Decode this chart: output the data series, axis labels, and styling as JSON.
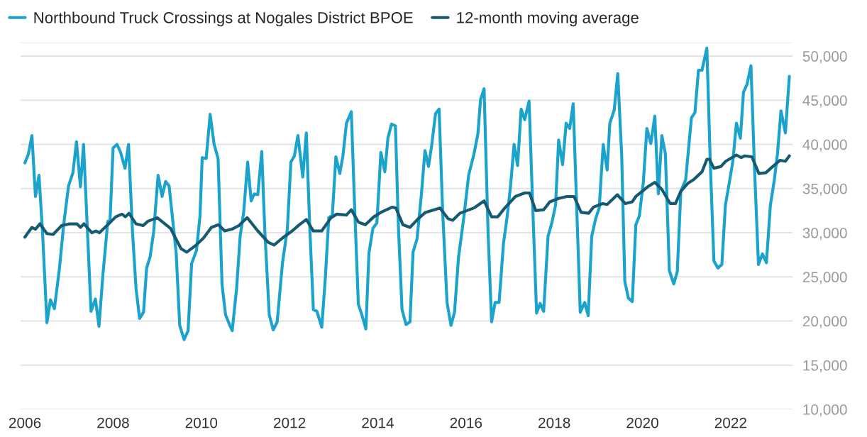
{
  "chart_data": {
    "type": "line",
    "series": [
      {
        "name": "Northbound Truck Crossings at Nogales District BPOE",
        "color": "#1ba3cc",
        "x": [
          2006.0,
          2006.08,
          2006.16,
          2006.24,
          2006.32,
          2006.4,
          2006.5,
          2006.58,
          2006.67,
          2006.78,
          2006.88,
          2006.99,
          2007.09,
          2007.17,
          2007.26,
          2007.33,
          2007.5,
          2007.6,
          2007.68,
          2007.77,
          2007.88,
          2007.93,
          2008.0,
          2008.09,
          2008.17,
          2008.27,
          2008.35,
          2008.44,
          2008.52,
          2008.6,
          2008.69,
          2008.76,
          2008.84,
          2008.92,
          2009.02,
          2009.11,
          2009.19,
          2009.27,
          2009.43,
          2009.51,
          2009.61,
          2009.7,
          2009.78,
          2009.89,
          2009.97,
          2010.02,
          2010.11,
          2010.2,
          2010.29,
          2010.38,
          2010.47,
          2010.55,
          2010.63,
          2010.7,
          2010.8,
          2010.88,
          2010.96,
          2011.05,
          2011.13,
          2011.2,
          2011.28,
          2011.37,
          2011.44,
          2011.54,
          2011.63,
          2011.72,
          2011.84,
          2011.95,
          2012.03,
          2012.11,
          2012.19,
          2012.3,
          2012.38,
          2012.46,
          2012.54,
          2012.62,
          2012.73,
          2012.81,
          2012.89,
          2012.97,
          2013.05,
          2013.14,
          2013.21,
          2013.29,
          2013.4,
          2013.48,
          2013.56,
          2013.64,
          2013.73,
          2013.8,
          2013.89,
          2013.98,
          2014.07,
          2014.16,
          2014.23,
          2014.31,
          2014.4,
          2014.47,
          2014.55,
          2014.64,
          2014.73,
          2014.8,
          2014.89,
          2014.99,
          2015.07,
          2015.15,
          2015.22,
          2015.31,
          2015.39,
          2015.47,
          2015.57,
          2015.66,
          2015.74,
          2015.83,
          2015.95,
          2016.06,
          2016.18,
          2016.27,
          2016.33,
          2016.41,
          2016.5,
          2016.58,
          2016.66,
          2016.75,
          2016.85,
          2016.93,
          2017.01,
          2017.09,
          2017.17,
          2017.25,
          2017.33,
          2017.43,
          2017.51,
          2017.6,
          2017.68,
          2017.76,
          2017.86,
          2017.95,
          2018.03,
          2018.1,
          2018.19,
          2018.27,
          2018.35,
          2018.43,
          2018.51,
          2018.59,
          2018.69,
          2018.77,
          2018.85,
          2018.94,
          2019.02,
          2019.11,
          2019.2,
          2019.26,
          2019.36,
          2019.44,
          2019.53,
          2019.6,
          2019.68,
          2019.77,
          2019.85,
          2019.93,
          2020.02,
          2020.1,
          2020.19,
          2020.28,
          2020.36,
          2020.44,
          2020.52,
          2020.61,
          2020.71,
          2020.79,
          2020.87,
          2020.98,
          2021.11,
          2021.19,
          2021.27,
          2021.35,
          2021.46,
          2021.54,
          2021.62,
          2021.71,
          2021.8,
          2021.88,
          2021.97,
          2022.05,
          2022.13,
          2022.22,
          2022.29,
          2022.37,
          2022.46,
          2022.54,
          2022.63,
          2022.72,
          2022.81,
          2022.9,
          2022.99,
          2023.06,
          2023.14,
          2023.24,
          2023.33
        ],
        "values": [
          37900,
          38900,
          41000,
          34100,
          36500,
          30100,
          19800,
          22400,
          21400,
          25800,
          30900,
          35300,
          36800,
          40300,
          35200,
          40000,
          21100,
          22500,
          19400,
          25300,
          31300,
          31300,
          39600,
          40000,
          39100,
          37300,
          40000,
          30100,
          23700,
          20300,
          21000,
          26000,
          27300,
          30100,
          36500,
          34100,
          35800,
          35300,
          27700,
          19500,
          17900,
          18900,
          26500,
          28000,
          31900,
          38500,
          38400,
          43400,
          40000,
          38400,
          24100,
          20700,
          19700,
          18900,
          23700,
          29600,
          32300,
          38000,
          33600,
          34400,
          34300,
          39200,
          30100,
          20700,
          19000,
          19900,
          26600,
          30400,
          38000,
          38700,
          41000,
          36300,
          41300,
          30400,
          21300,
          21100,
          19300,
          24800,
          31700,
          32000,
          38600,
          36700,
          38700,
          42400,
          43700,
          32300,
          21900,
          20700,
          19100,
          27700,
          30500,
          31100,
          39100,
          36900,
          40700,
          42300,
          42100,
          30400,
          21300,
          19600,
          19900,
          27800,
          29300,
          34400,
          39300,
          37500,
          39800,
          43500,
          44000,
          32500,
          22100,
          19500,
          21000,
          27200,
          31700,
          36500,
          38900,
          41200,
          45100,
          46300,
          30100,
          19900,
          22100,
          22100,
          28800,
          31700,
          35300,
          40000,
          37600,
          44000,
          42800,
          44900,
          33300,
          20900,
          22000,
          21100,
          29600,
          31200,
          33100,
          40500,
          37700,
          42400,
          41800,
          44600,
          32800,
          21000,
          22100,
          20600,
          29600,
          31600,
          32800,
          40000,
          37100,
          42400,
          43900,
          48000,
          38700,
          24500,
          22600,
          22200,
          30900,
          31900,
          35700,
          41800,
          40100,
          43200,
          34400,
          41000,
          38900,
          25700,
          24200,
          25600,
          34700,
          36000,
          43000,
          43600,
          48400,
          48400,
          50900,
          37600,
          26800,
          26000,
          26400,
          33100,
          35700,
          38100,
          42400,
          40700,
          45900,
          46800,
          48900,
          37300,
          26400,
          27600,
          26600,
          33100,
          36000,
          38900,
          43800,
          41300,
          47700
        ]
      },
      {
        "name": "12-month moving average",
        "color": "#165a72",
        "x": [
          2006.0,
          2006.16,
          2006.24,
          2006.34,
          2006.5,
          2006.64,
          2006.83,
          2007.02,
          2007.18,
          2007.26,
          2007.34,
          2007.52,
          2007.61,
          2007.69,
          2007.88,
          2008.06,
          2008.2,
          2008.28,
          2008.36,
          2008.52,
          2008.68,
          2008.79,
          2009.0,
          2009.3,
          2009.54,
          2009.67,
          2009.86,
          2010.05,
          2010.23,
          2010.39,
          2010.53,
          2010.69,
          2010.85,
          2011.04,
          2011.28,
          2011.52,
          2011.65,
          2011.84,
          2012.06,
          2012.22,
          2012.38,
          2012.54,
          2012.73,
          2012.94,
          2013.07,
          2013.29,
          2013.4,
          2013.56,
          2013.72,
          2013.91,
          2014.07,
          2014.33,
          2014.41,
          2014.57,
          2014.73,
          2014.92,
          2015.08,
          2015.41,
          2015.59,
          2015.7,
          2015.86,
          2016.18,
          2016.41,
          2016.58,
          2016.72,
          2016.88,
          2017.12,
          2017.33,
          2017.44,
          2017.58,
          2017.76,
          2017.9,
          2018.11,
          2018.29,
          2018.45,
          2018.61,
          2018.78,
          2018.89,
          2019.1,
          2019.2,
          2019.43,
          2019.61,
          2019.77,
          2019.85,
          2020.12,
          2020.28,
          2020.44,
          2020.63,
          2020.75,
          2020.87,
          2021.03,
          2021.16,
          2021.35,
          2021.46,
          2021.52,
          2021.62,
          2021.78,
          2021.89,
          2022.13,
          2022.24,
          2022.32,
          2022.48,
          2022.64,
          2022.8,
          2022.91,
          2023.12,
          2023.24,
          2023.33
        ],
        "values": [
          29500,
          30600,
          30400,
          31000,
          29900,
          29800,
          30800,
          31000,
          31000,
          30600,
          31000,
          30000,
          30200,
          30000,
          30900,
          31800,
          32100,
          31800,
          32200,
          31000,
          30800,
          31300,
          31700,
          30500,
          28200,
          27800,
          28500,
          29400,
          30600,
          30900,
          30200,
          30400,
          30800,
          31700,
          30200,
          28900,
          28600,
          29400,
          30200,
          30900,
          31500,
          30200,
          30200,
          31700,
          32100,
          32000,
          32600,
          31200,
          30900,
          31800,
          32300,
          32900,
          32800,
          30900,
          30600,
          31600,
          32300,
          32800,
          31600,
          31400,
          32200,
          32800,
          33600,
          31800,
          31800,
          32800,
          34100,
          34500,
          34500,
          32500,
          32600,
          33500,
          33900,
          34100,
          34100,
          32300,
          32200,
          32900,
          33300,
          33200,
          34300,
          33300,
          33500,
          34100,
          35200,
          35700,
          34900,
          33300,
          33300,
          34700,
          35600,
          36000,
          36900,
          38300,
          38300,
          37300,
          37500,
          38100,
          38800,
          38500,
          38700,
          38600,
          36700,
          36800,
          37300,
          38200,
          38100,
          38700
        ]
      }
    ],
    "xlim": [
      2005.9,
      2023.4
    ],
    "xticks": [
      2006,
      2008,
      2010,
      2012,
      2014,
      2016,
      2018,
      2020,
      2022
    ],
    "ylim": [
      10000,
      51500
    ],
    "yticks": [
      {
        "value": 10000,
        "label": "10,000"
      },
      {
        "value": 15000,
        "label": "15,000"
      },
      {
        "value": 20000,
        "label": "20,000"
      },
      {
        "value": 25000,
        "label": "25,000"
      },
      {
        "value": 30000,
        "label": "30,000"
      },
      {
        "value": 35000,
        "label": "35,000"
      },
      {
        "value": 40000,
        "label": "40,000"
      },
      {
        "value": 45000,
        "label": "45,000"
      },
      {
        "value": 50000,
        "label": "50,000"
      }
    ],
    "grid": "y",
    "legend": "top left",
    "line_style": "solid",
    "marker": "none"
  }
}
